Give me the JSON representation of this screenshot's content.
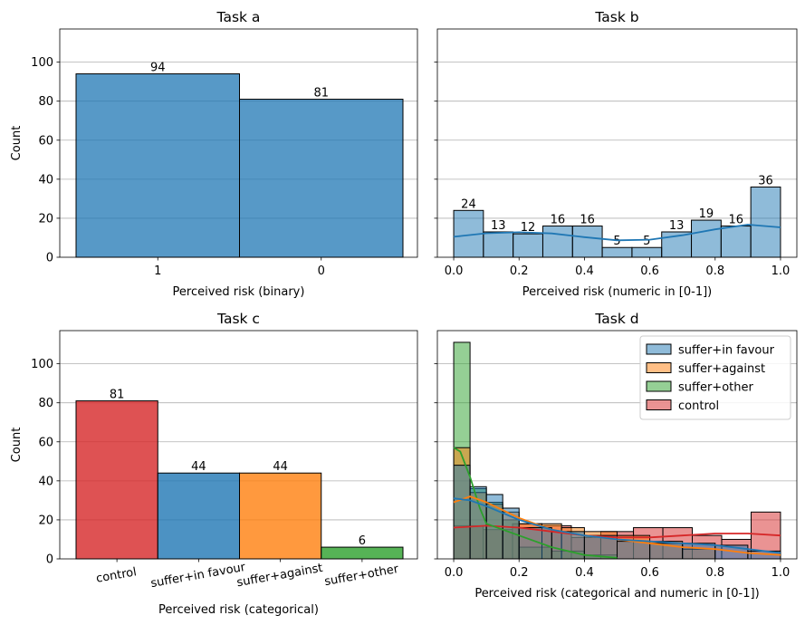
{
  "colors": {
    "blue": "#1f77b4",
    "orange": "#ff7f0e",
    "green": "#2ca02c",
    "red": "#d62728",
    "grid": "#b0b0b0",
    "edge": "#000000"
  },
  "chart_data": [
    {
      "type": "bar",
      "title": "Task a",
      "xlabel": "Perceived risk (binary)",
      "ylabel": "Count",
      "categories": [
        "1",
        "0"
      ],
      "values": [
        94,
        81
      ],
      "data_labels": [
        "94",
        "81"
      ],
      "ylim": [
        0,
        117
      ],
      "yticks": [
        0,
        20,
        40,
        60,
        80,
        100
      ],
      "ytick_labels": [
        "0",
        "20",
        "40",
        "60",
        "80",
        "100"
      ],
      "grid": "y"
    },
    {
      "type": "bar",
      "title": "Task b",
      "xlabel": "Perceived risk (numeric in [0-1])",
      "ylabel": "",
      "bin_edges": [
        0.0,
        0.0909,
        0.1818,
        0.2727,
        0.3636,
        0.4545,
        0.5455,
        0.6364,
        0.7273,
        0.8182,
        0.9091,
        1.0
      ],
      "values": [
        24,
        13,
        12,
        16,
        16,
        5,
        5,
        13,
        19,
        16,
        36
      ],
      "data_labels": [
        "24",
        "13",
        "12",
        "16",
        "16",
        "5",
        "5",
        "13",
        "19",
        "16",
        "36"
      ],
      "kde": {
        "x": [
          0.0,
          0.1,
          0.2,
          0.3,
          0.4,
          0.5,
          0.6,
          0.7,
          0.8,
          0.9,
          1.0
        ],
        "y": [
          10.5,
          12.3,
          12.8,
          12.2,
          10.3,
          8.7,
          9.0,
          11.3,
          14.3,
          16.7,
          15.3
        ]
      },
      "xlim": [
        -0.05,
        1.05
      ],
      "xticks": [
        0.0,
        0.2,
        0.4,
        0.6,
        0.8,
        1.0
      ],
      "xtick_labels": [
        "0.0",
        "0.2",
        "0.4",
        "0.6",
        "0.8",
        "1.0"
      ],
      "ylim": [
        0,
        117
      ],
      "yticks": [
        0,
        20,
        40,
        60,
        80,
        100
      ],
      "grid": "y"
    },
    {
      "type": "bar",
      "title": "Task c",
      "xlabel": "Perceived risk (categorical)",
      "ylabel": "Count",
      "categories": [
        "control",
        "suffer+in favour",
        "suffer+against",
        "suffer+other"
      ],
      "values": [
        81,
        44,
        44,
        6
      ],
      "data_labels": [
        "81",
        "44",
        "44",
        "6"
      ],
      "series_colors": [
        "#d62728",
        "#1f77b4",
        "#ff7f0e",
        "#2ca02c"
      ],
      "ylim": [
        0,
        117
      ],
      "yticks": [
        0,
        20,
        40,
        60,
        80,
        100
      ],
      "ytick_labels": [
        "0",
        "20",
        "40",
        "60",
        "80",
        "100"
      ],
      "grid": "y"
    },
    {
      "type": "bar",
      "title": "Task d",
      "xlabel": "Perceived risk (categorical and numeric in [0-1])",
      "ylabel": "",
      "legend_position": "top-right",
      "xlim": [
        -0.05,
        1.05
      ],
      "xticks": [
        0.0,
        0.2,
        0.4,
        0.6,
        0.8,
        1.0
      ],
      "xtick_labels": [
        "0.0",
        "0.2",
        "0.4",
        "0.6",
        "0.8",
        "1.0"
      ],
      "ylim": [
        0,
        117
      ],
      "yticks": [
        0,
        20,
        40,
        60,
        80,
        100
      ],
      "grid": "y",
      "series": [
        {
          "name": "suffer+in favour",
          "color": "#1f77b4",
          "bin_edges": [
            0.0,
            0.05,
            0.1,
            0.15,
            0.2,
            0.3,
            0.4,
            0.5,
            0.6,
            0.7,
            0.8,
            0.9,
            1.0
          ],
          "values": [
            48,
            37,
            33,
            26,
            16,
            14,
            12,
            9,
            8,
            8,
            7,
            4
          ],
          "kde": {
            "x": [
              0.0,
              0.05,
              0.1,
              0.2,
              0.3,
              0.4,
              0.5,
              0.6,
              0.7,
              0.8,
              0.9,
              1.0
            ],
            "y": [
              31,
              30,
              27,
              20,
              15,
              12,
              10,
              9,
              8,
              7,
              5,
              3
            ]
          }
        },
        {
          "name": "suffer+against",
          "color": "#ff7f0e",
          "bin_edges": [
            0.0,
            0.05,
            0.1,
            0.15,
            0.2,
            0.27,
            0.33,
            0.4,
            0.5,
            0.6,
            0.7,
            0.8
          ],
          "values": [
            57,
            34,
            28,
            24,
            18,
            18,
            16,
            14,
            12,
            9,
            5
          ],
          "kde": {
            "x": [
              0.0,
              0.05,
              0.1,
              0.2,
              0.3,
              0.4,
              0.5,
              0.6,
              0.7,
              0.8,
              0.9,
              1.0
            ],
            "y": [
              29,
              32,
              29,
              21,
              15,
              12,
              10,
              8,
              6,
              5,
              3,
              2
            ]
          }
        },
        {
          "name": "suffer+other",
          "color": "#2ca02c",
          "bin_edges": [
            0.0,
            0.05,
            0.1,
            0.15,
            0.2,
            0.3,
            0.4,
            0.5
          ],
          "values": [
            111,
            36,
            29,
            20,
            6,
            4,
            2
          ],
          "kde": {
            "x": [
              0.0,
              0.02,
              0.05,
              0.08,
              0.1,
              0.15,
              0.2,
              0.3,
              0.4,
              0.5
            ],
            "y": [
              57,
              55,
              42,
              26,
              18,
              15,
              12,
              6,
              2,
              0.5
            ]
          }
        },
        {
          "name": "control",
          "color": "#d62728",
          "bin_edges": [
            0.0,
            0.09,
            0.18,
            0.27,
            0.36,
            0.45,
            0.55,
            0.64,
            0.73,
            0.82,
            0.91,
            1.0
          ],
          "values": [
            17,
            15,
            18,
            17,
            11,
            14,
            16,
            16,
            12,
            10,
            24
          ],
          "kde": {
            "x": [
              0.0,
              0.1,
              0.2,
              0.3,
              0.4,
              0.5,
              0.6,
              0.7,
              0.8,
              0.9,
              1.0
            ],
            "y": [
              16,
              17,
              16,
              14,
              12,
              11,
              11,
              12,
              13,
              13,
              12
            ]
          }
        }
      ]
    }
  ]
}
